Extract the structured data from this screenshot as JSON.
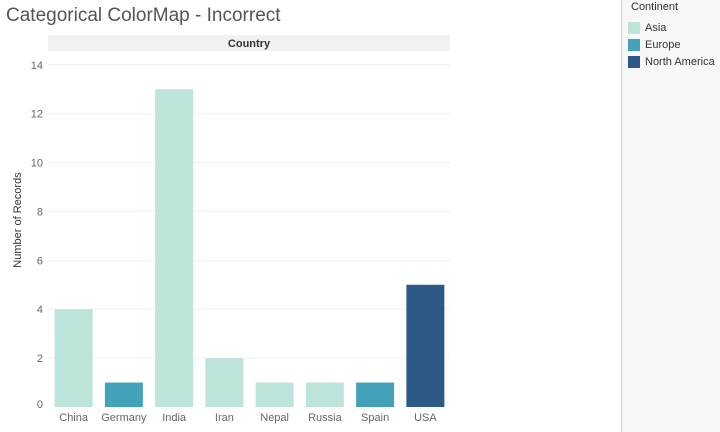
{
  "title": "Categorical ColorMap - Incorrect",
  "legend": {
    "title": "Continent",
    "items": [
      {
        "label": "Asia",
        "color": "#bde4db"
      },
      {
        "label": "Europe",
        "color": "#43a2ba"
      },
      {
        "label": "North America",
        "color": "#2c5985"
      }
    ]
  },
  "chart_data": {
    "type": "bar",
    "title": "Categorical ColorMap - Incorrect",
    "column_header": "Country",
    "xlabel": "",
    "ylabel": "Number of Records",
    "ylim": [
      0,
      14
    ],
    "yticks": [
      0,
      2,
      4,
      6,
      8,
      10,
      12,
      14
    ],
    "grid": true,
    "legend_position": "right",
    "categories": [
      "China",
      "Germany",
      "India",
      "Iran",
      "Nepal",
      "Russia",
      "Spain",
      "USA"
    ],
    "values": [
      4,
      1,
      13,
      2,
      1,
      1,
      1,
      5
    ],
    "groups": [
      "Asia",
      "Europe",
      "Asia",
      "Asia",
      "Asia",
      "Asia",
      "Europe",
      "North America"
    ]
  }
}
